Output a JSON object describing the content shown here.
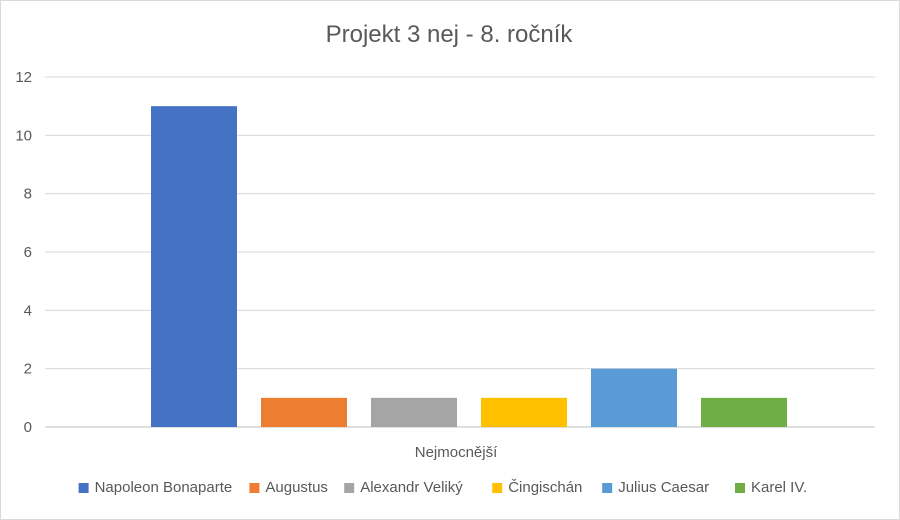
{
  "chart_data": {
    "type": "bar",
    "title": "Projekt 3 nej - 8. ročník",
    "categories": [
      "Nejmocnější"
    ],
    "series": [
      {
        "name": "Napoleon Bonaparte",
        "values": [
          11
        ],
        "color": "#4472C4"
      },
      {
        "name": "Augustus",
        "values": [
          1
        ],
        "color": "#ED7D31"
      },
      {
        "name": "Alexandr Veliký",
        "values": [
          1
        ],
        "color": "#A5A5A5"
      },
      {
        "name": "Čingischán",
        "values": [
          1
        ],
        "color": "#FFC000"
      },
      {
        "name": "Julius Caesar",
        "values": [
          2
        ],
        "color": "#5B9BD5"
      },
      {
        "name": "Karel IV.",
        "values": [
          1
        ],
        "color": "#70AD47"
      }
    ],
    "xlabel": "",
    "ylabel": "",
    "ylim": [
      0,
      12
    ],
    "yticks": [
      0,
      2,
      4,
      6,
      8,
      10,
      12
    ],
    "grid": true,
    "legend_position": "bottom"
  }
}
